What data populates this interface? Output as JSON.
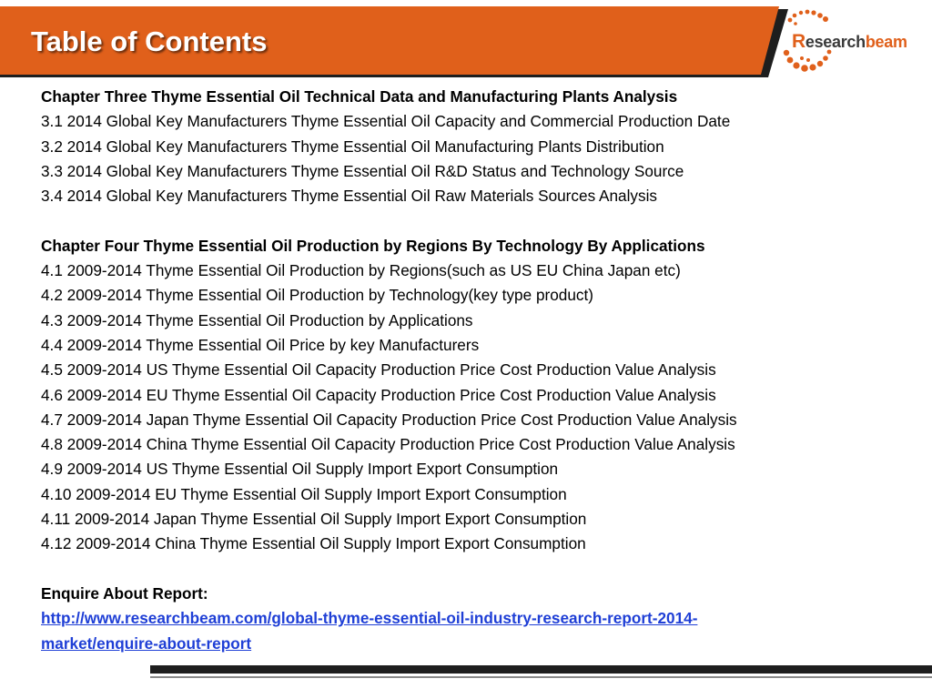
{
  "header": {
    "title": "Table of Contents"
  },
  "logo": {
    "first_letter": "R",
    "text_middle": "esearch",
    "text_end": "beam"
  },
  "chapter3": {
    "heading": "Chapter Three Thyme Essential Oil Technical Data and Manufacturing Plants Analysis",
    "items": [
      "3.1 2014 Global Key Manufacturers Thyme Essential Oil Capacity and Commercial Production Date",
      "3.2 2014 Global Key Manufacturers Thyme Essential Oil Manufacturing Plants Distribution",
      "3.3 2014 Global Key Manufacturers Thyme Essential Oil R&D Status and Technology Source",
      "3.4 2014 Global Key Manufacturers Thyme Essential Oil Raw Materials Sources Analysis"
    ]
  },
  "chapter4": {
    "heading": "Chapter Four Thyme Essential Oil Production by Regions By Technology By Applications",
    "items": [
      "4.1 2009-2014 Thyme Essential Oil Production by Regions(such as US EU China Japan etc)",
      "4.2 2009-2014 Thyme Essential Oil Production by Technology(key type product)",
      "4.3 2009-2014 Thyme Essential Oil Production by Applications",
      "4.4 2009-2014 Thyme Essential Oil Price by key Manufacturers",
      "4.5 2009-2014 US Thyme Essential Oil Capacity Production Price Cost Production Value Analysis",
      "4.6 2009-2014 EU Thyme Essential Oil Capacity Production Price Cost Production Value Analysis",
      "4.7 2009-2014 Japan Thyme Essential Oil Capacity Production Price Cost Production Value Analysis",
      "4.8 2009-2014 China Thyme Essential Oil Capacity Production Price Cost Production Value Analysis",
      "4.9 2009-2014 US Thyme Essential Oil Supply Import Export Consumption",
      "4.10 2009-2014 EU Thyme Essential Oil Supply Import Export Consumption",
      "4.11 2009-2014 Japan Thyme Essential Oil Supply Import Export Consumption",
      "4.12 2009-2014 China Thyme Essential Oil Supply Import Export Consumption"
    ]
  },
  "enquire": {
    "label": "Enquire About Report:",
    "link_line1": "http://www.researchbeam.com/global-thyme-essential-oil-industry-research-report-2014-",
    "link_line2": "market/enquire-about-report"
  },
  "colors": {
    "accent": "#e0601b",
    "dark": "#1e1e1e",
    "link": "#1f3fd6"
  }
}
